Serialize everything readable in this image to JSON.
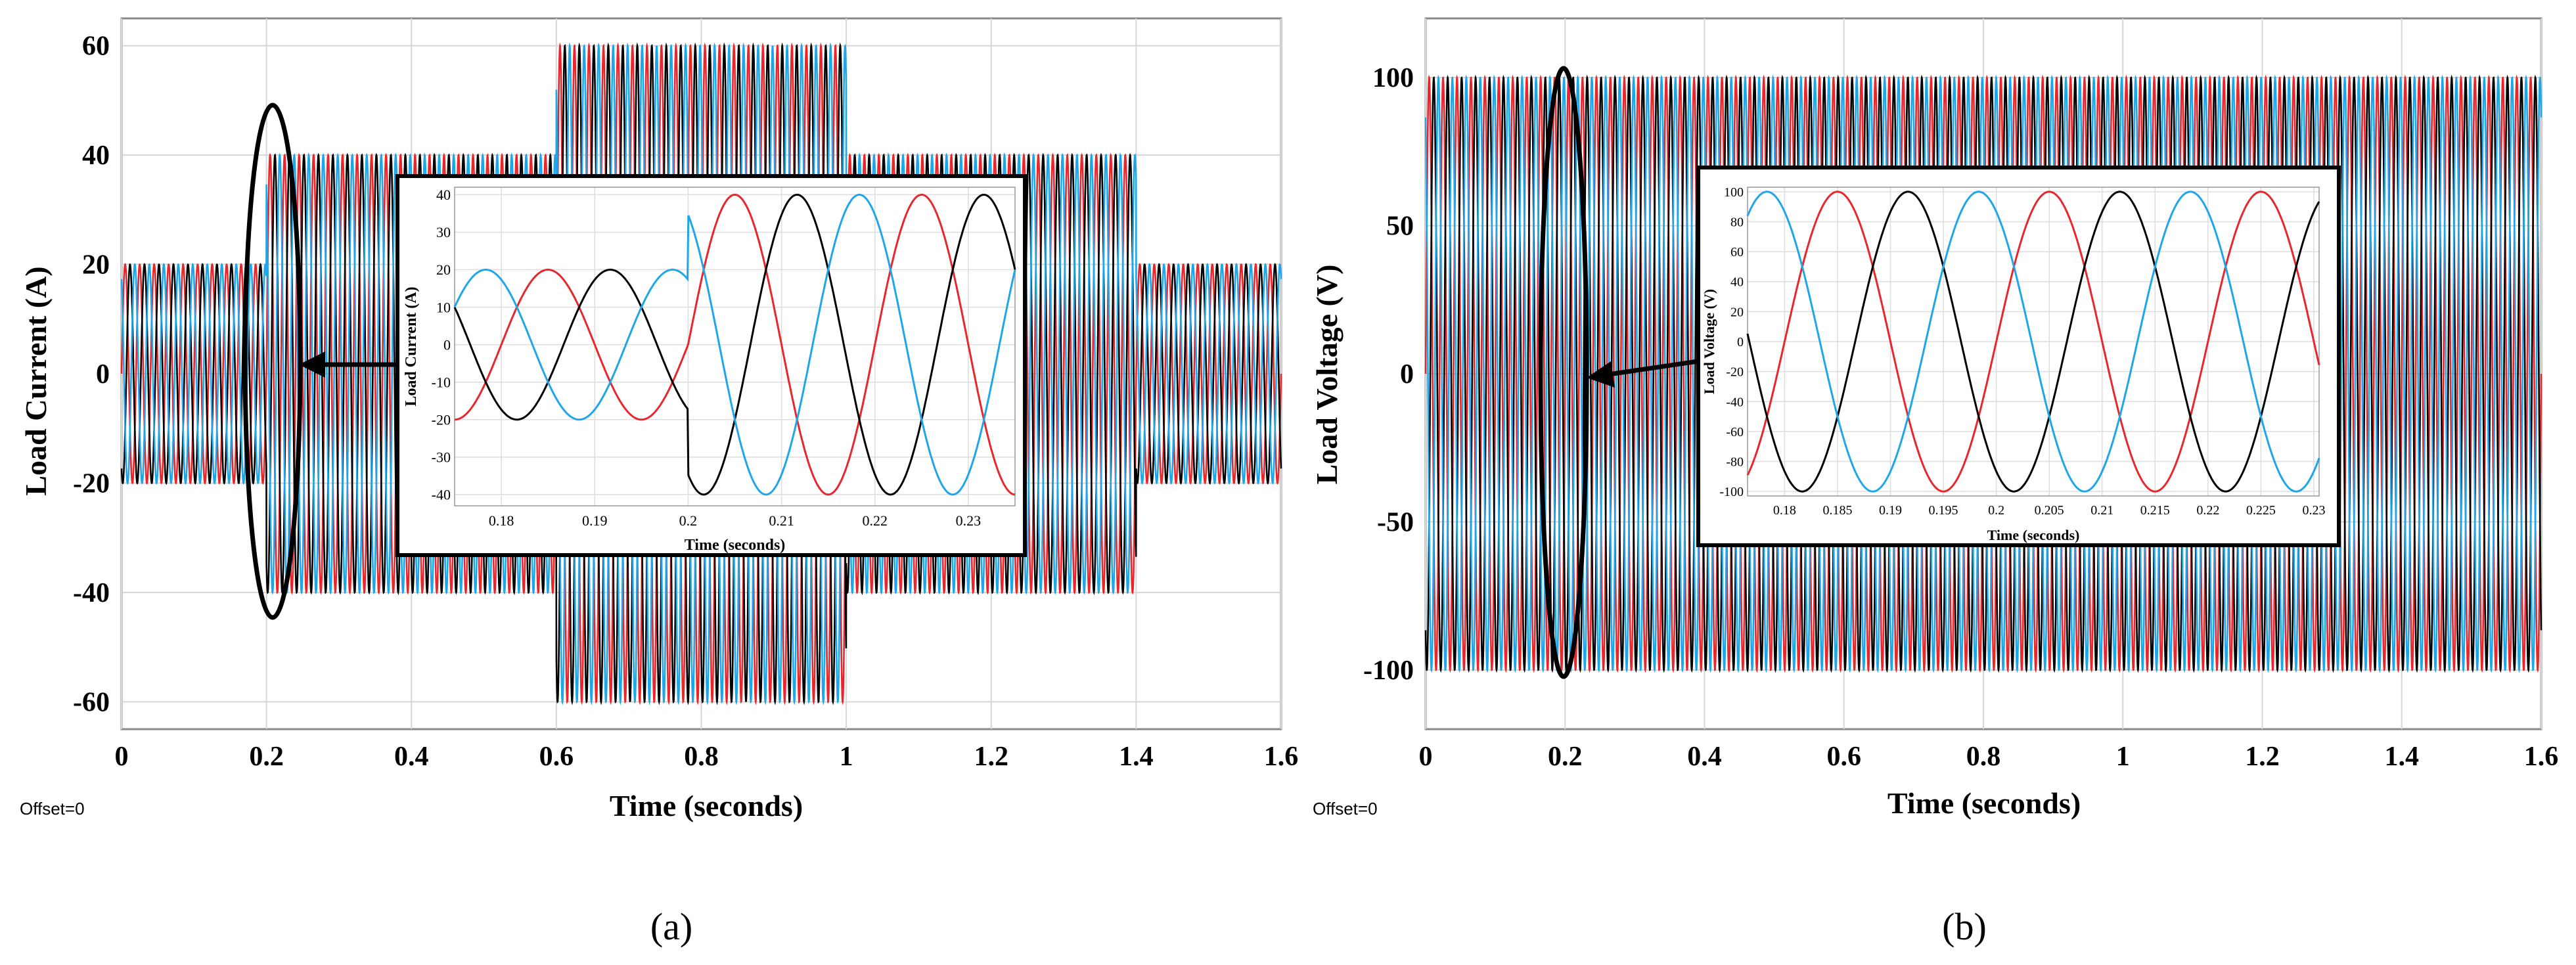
{
  "colors": {
    "phase_a": "#e8262c",
    "phase_b": "#000000",
    "phase_c": "#1ea6ea",
    "grid": "#d6d6d6"
  },
  "chart_data": [
    {
      "panel_label": "(a)",
      "type": "line",
      "xlabel": "Time (seconds)",
      "ylabel": "Load Current (A)",
      "offset_text": "Offset=0",
      "xlim": [
        0,
        1.6
      ],
      "ylim": [
        -65,
        65
      ],
      "xticks": [
        "0",
        "0.2",
        "0.4",
        "0.6",
        "0.8",
        "1",
        "1.2",
        "1.4",
        "1.6"
      ],
      "yticks": [
        "-60",
        "-40",
        "-20",
        "0",
        "20",
        "40",
        "60"
      ],
      "frequency_hz": 50,
      "series": [
        {
          "phase_deg": 0,
          "color": "#e8262c"
        },
        {
          "phase_deg": -120,
          "color": "#000000"
        },
        {
          "phase_deg": 120,
          "color": "#1ea6ea"
        }
      ],
      "envelope": [
        {
          "t_start": 0,
          "t_end": 0.2,
          "amplitude": 20
        },
        {
          "t_start": 0.2,
          "t_end": 0.6,
          "amplitude": 40
        },
        {
          "t_start": 0.6,
          "t_end": 1.0,
          "amplitude": 60
        },
        {
          "t_start": 1.0,
          "t_end": 1.4,
          "amplitude": 40
        },
        {
          "t_start": 1.4,
          "t_end": 1.6,
          "amplitude": 20
        }
      ],
      "highlight_time": 0.2,
      "inset": {
        "xlabel": "Time (seconds)",
        "ylabel": "Load Current (A)",
        "xlim": [
          0.175,
          0.235
        ],
        "ylim": [
          -43,
          42
        ],
        "xticks": [
          "0.18",
          "0.19",
          "0.2",
          "0.21",
          "0.22",
          "0.23"
        ],
        "yticks": [
          "-40",
          "-30",
          "-20",
          "-10",
          "0",
          "10",
          "20",
          "30",
          "40"
        ],
        "step_time": 0.2,
        "amp_before": 20,
        "amp_after": 40
      }
    },
    {
      "panel_label": "(b)",
      "type": "line",
      "xlabel": "Time (seconds)",
      "ylabel": "Load Voltage (V)",
      "offset_text": "Offset=0",
      "xlim": [
        0,
        1.6
      ],
      "ylim": [
        -120,
        120
      ],
      "xticks": [
        "0",
        "0.2",
        "0.4",
        "0.6",
        "0.8",
        "1",
        "1.2",
        "1.4",
        "1.6"
      ],
      "yticks": [
        "-100",
        "-50",
        "0",
        "50",
        "100"
      ],
      "frequency_hz": 50,
      "series": [
        {
          "phase_deg": 0,
          "color": "#e8262c"
        },
        {
          "phase_deg": -120,
          "color": "#000000"
        },
        {
          "phase_deg": 120,
          "color": "#1ea6ea"
        }
      ],
      "envelope": [
        {
          "t_start": 0,
          "t_end": 1.6,
          "amplitude": 100
        }
      ],
      "highlight_time": 0.2,
      "inset": {
        "xlabel": "Time (seconds)",
        "ylabel": "Load Voltage (V)",
        "xlim": [
          0.1765,
          0.2305
        ],
        "ylim": [
          -103,
          103
        ],
        "xticks": [
          "0.18",
          "0.185",
          "0.19",
          "0.195",
          "0.2",
          "0.205",
          "0.21",
          "0.215",
          "0.22",
          "0.225",
          "0.23"
        ],
        "yticks": [
          "-100",
          "-80",
          "-60",
          "-40",
          "-20",
          "0",
          "20",
          "40",
          "60",
          "80",
          "100"
        ],
        "step_time": null,
        "amp_before": 100,
        "amp_after": 100
      }
    }
  ]
}
